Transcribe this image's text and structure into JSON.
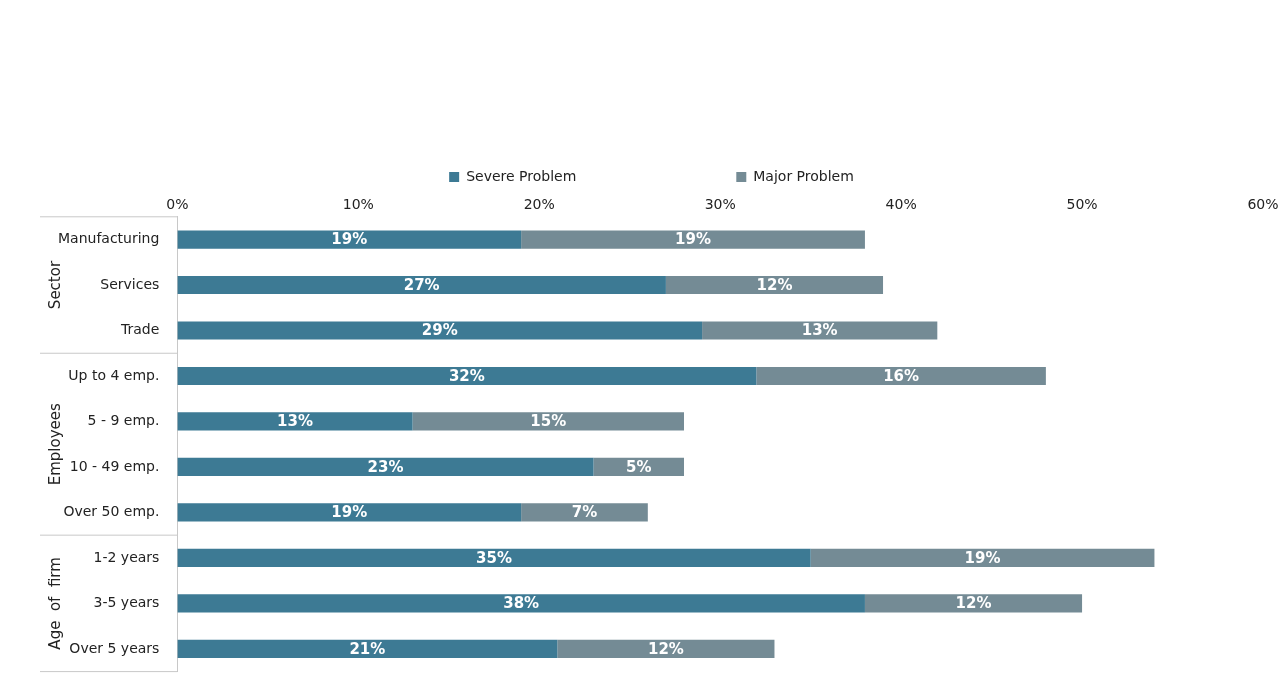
{
  "chart_data": {
    "type": "bar",
    "orientation": "horizontal",
    "stacked": true,
    "categories": [
      "Manufacturing",
      "Services",
      "Trade",
      "Up to 4 emp.",
      "5 - 9 emp.",
      "10 - 49 emp.",
      "Over 50 emp.",
      "1-2 years",
      "3-5 years",
      "Over 5 years"
    ],
    "series": [
      {
        "name": "Severe Problem",
        "color": "#3d7a94",
        "values": [
          19,
          27,
          29,
          32,
          13,
          23,
          19,
          35,
          38,
          21
        ]
      },
      {
        "name": "Major Problem",
        "color": "#748b95",
        "values": [
          19,
          12,
          13,
          16,
          15,
          5,
          7,
          19,
          12,
          12
        ]
      }
    ],
    "xlim": [
      0,
      60
    ],
    "xticks": [
      {
        "value": 0,
        "label": "0%"
      },
      {
        "value": 10,
        "label": "10%"
      },
      {
        "value": 20,
        "label": "20%"
      },
      {
        "value": 30,
        "label": "30%"
      },
      {
        "value": 40,
        "label": "40%"
      },
      {
        "value": 50,
        "label": "50%"
      },
      {
        "value": 60,
        "label": "60%"
      }
    ],
    "value_labels": [
      [
        "19%",
        "27%",
        "29%",
        "32%",
        "13%",
        "23%",
        "19%",
        "35%",
        "38%",
        "21%"
      ],
      [
        "19%",
        "12%",
        "13%",
        "16%",
        "15%",
        "5%",
        "7%",
        "19%",
        "12%",
        "12%"
      ]
    ],
    "annotations": [
      "Sector",
      "Employees",
      "Age  of  firm"
    ],
    "grid": false,
    "legend": "top"
  }
}
